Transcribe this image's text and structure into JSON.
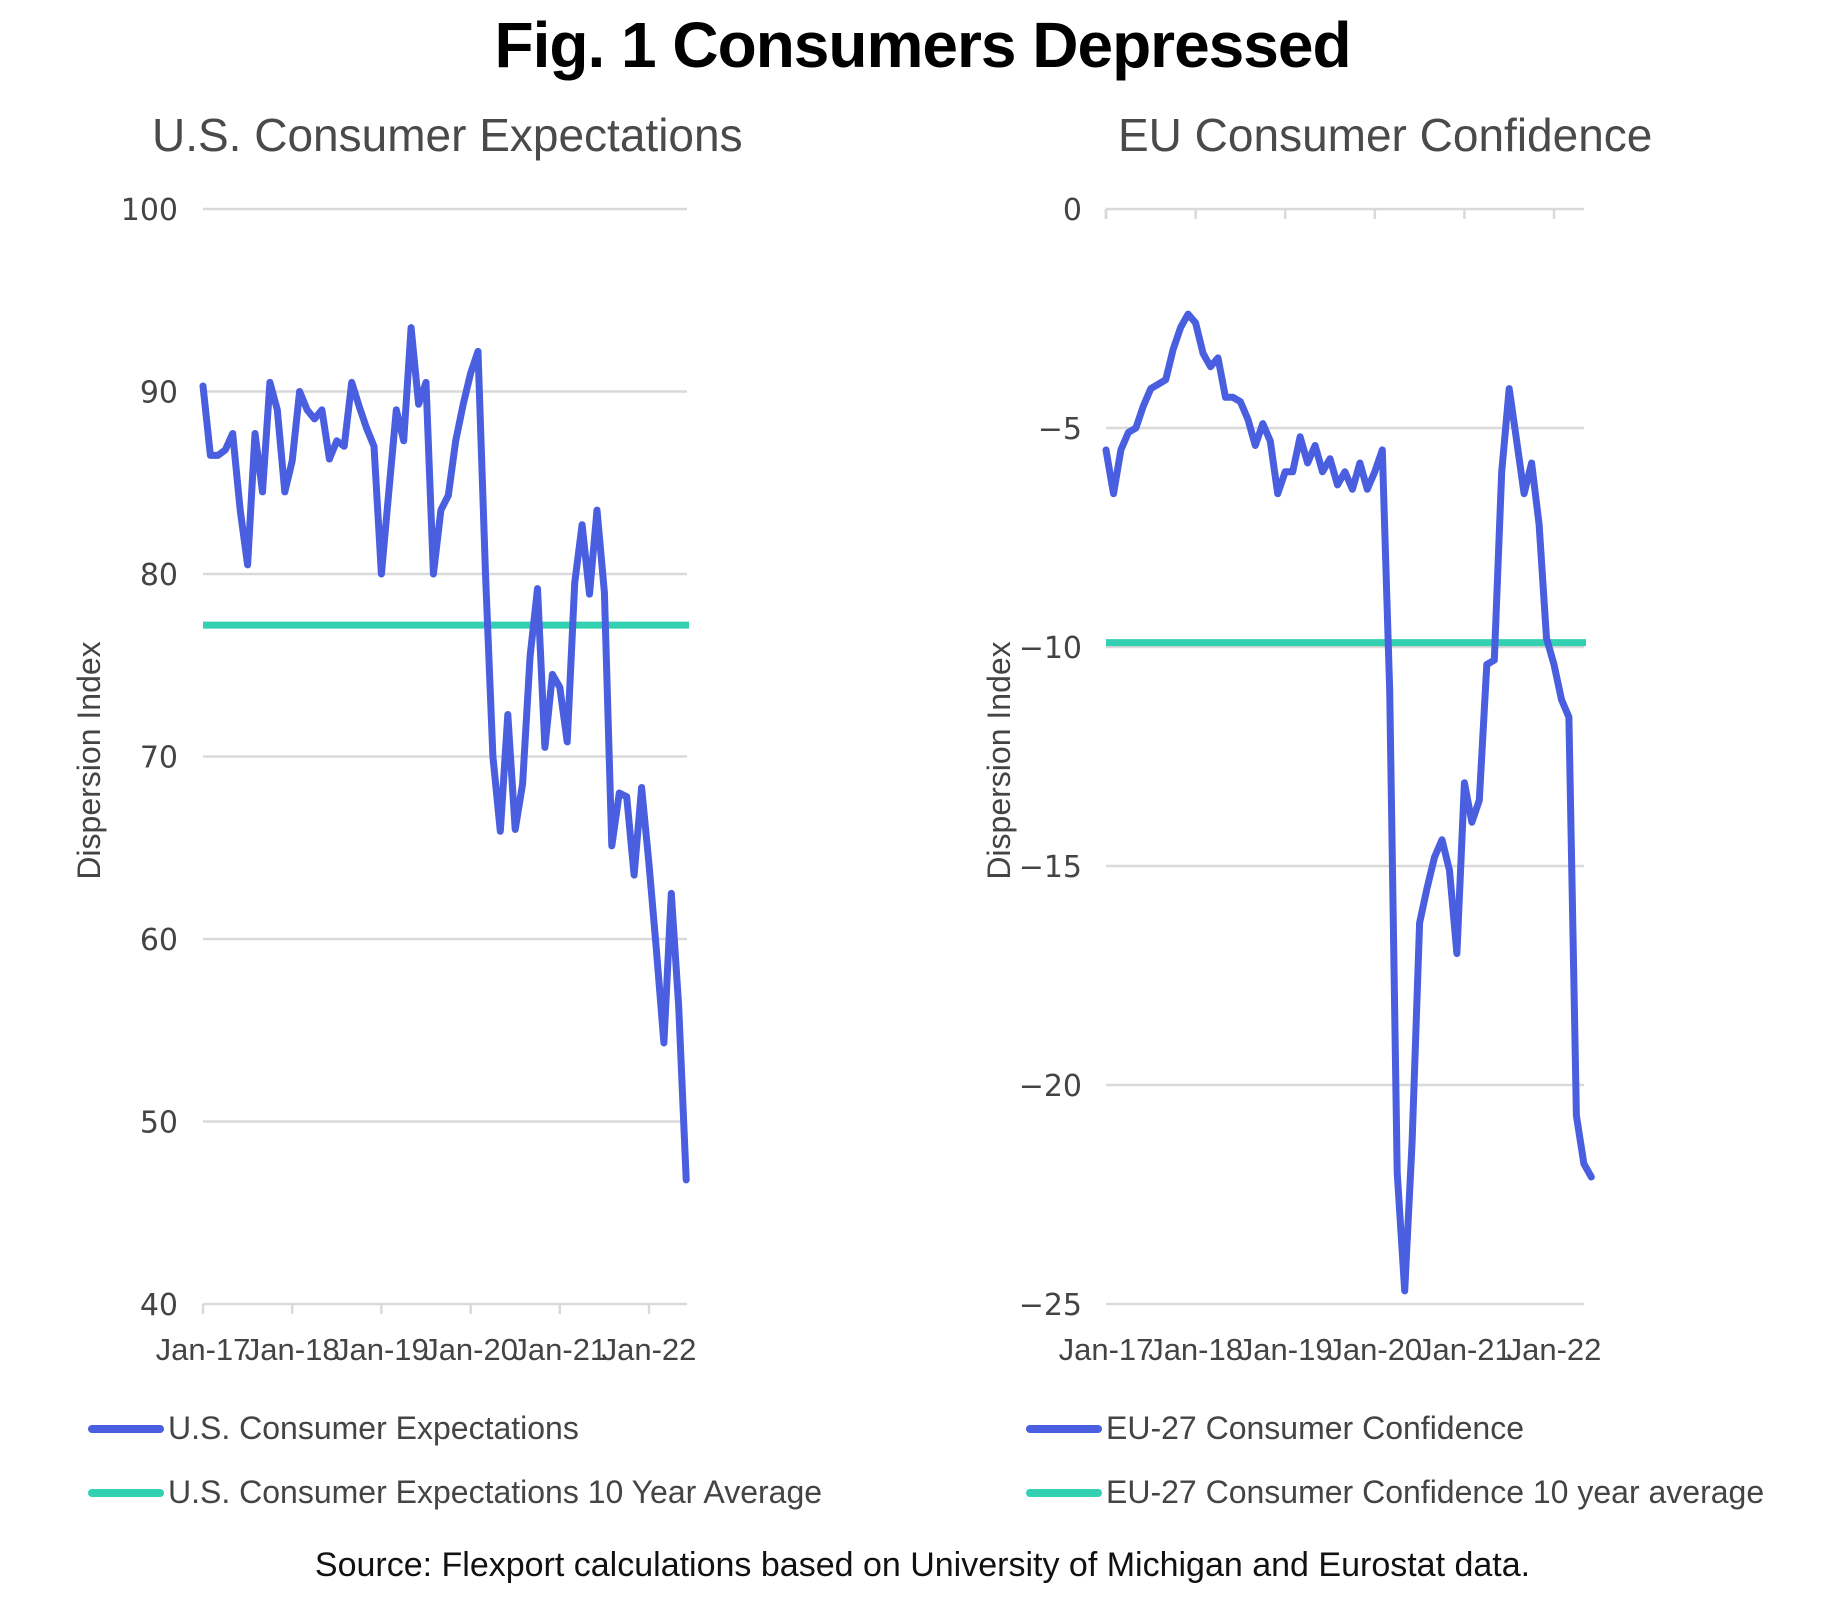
{
  "title": "Fig. 1 Consumers Depressed",
  "source": "Source: Flexport calculations based on University of Michigan and Eurostat data.",
  "colors": {
    "series": "#4a5ee0",
    "average": "#33d1b2",
    "grid": "#d9d9d9",
    "text": "#444444"
  },
  "chart_data": [
    {
      "type": "line",
      "title": "U.S. Consumer Expectations",
      "xlabel": "",
      "ylabel": "Dispersion Index",
      "ylim": [
        40,
        100
      ],
      "yticks": [
        40,
        50,
        60,
        70,
        80,
        90,
        100
      ],
      "xticks": [
        "Jan-17",
        "Jan-18",
        "Jan-19",
        "Jan-20",
        "Jan-21",
        "Jan-22"
      ],
      "x_start": "Jan-17",
      "x_frequency": "monthly",
      "grid": true,
      "legend_position": "bottom",
      "series": [
        {
          "name": "U.S. Consumer Expectations",
          "values": [
            90.3,
            86.5,
            86.5,
            86.8,
            87.7,
            83.5,
            80.5,
            87.7,
            84.5,
            90.5,
            89,
            84.5,
            86.2,
            90,
            89,
            88.5,
            89,
            86.3,
            87.3,
            87,
            90.5,
            89.2,
            88,
            87,
            80,
            84.5,
            89,
            87.3,
            93.5,
            89.3,
            90.5,
            80,
            83.5,
            84.3,
            87.3,
            89.3,
            91,
            92.2,
            80,
            70,
            65.9,
            72.3,
            66,
            68.5,
            75.5,
            79.2,
            70.5,
            74.5,
            73.8,
            70.8,
            79.5,
            82.7,
            78.9,
            83.5,
            79,
            65.1,
            68,
            67.8,
            63.5,
            68.3,
            64.1,
            59.4,
            54.3,
            62.5,
            56.3,
            46.8
          ]
        },
        {
          "name": "U.S. Consumer Expectations 10 Year Average",
          "constant": 77.2
        }
      ]
    },
    {
      "type": "line",
      "title": "EU Consumer Confidence",
      "xlabel": "",
      "ylabel": "Dispersion Index",
      "ylim": [
        -25,
        0
      ],
      "yticks": [
        0,
        -5,
        -10,
        -15,
        -20,
        -25
      ],
      "xticks": [
        "Jan-17",
        "Jan-18",
        "Jan-19",
        "Jan-20",
        "Jan-21",
        "Jan-22"
      ],
      "x_start": "Jan-17",
      "x_frequency": "monthly",
      "grid": true,
      "legend_position": "bottom",
      "series": [
        {
          "name": "EU-27 Consumer Confidence",
          "values": [
            -5.5,
            -6.5,
            -5.5,
            -5.1,
            -5.0,
            -4.5,
            -4.1,
            -4.0,
            -3.9,
            -3.2,
            -2.7,
            -2.4,
            -2.6,
            -3.3,
            -3.6,
            -3.4,
            -4.3,
            -4.3,
            -4.4,
            -4.8,
            -5.4,
            -4.9,
            -5.3,
            -6.5,
            -6.0,
            -6.0,
            -5.2,
            -5.8,
            -5.4,
            -6.0,
            -5.7,
            -6.3,
            -6.0,
            -6.4,
            -5.8,
            -6.4,
            -6.0,
            -5.5,
            -11.0,
            -22.0,
            -24.7,
            -21.3,
            -16.3,
            -15.5,
            -14.8,
            -14.4,
            -15.1,
            -17.0,
            -13.1,
            -14.0,
            -13.5,
            -10.4,
            -10.3,
            -6.0,
            -4.1,
            -5.3,
            -6.5,
            -5.8,
            -7.2,
            -9.8,
            -10.4,
            -11.2,
            -11.6,
            -20.7,
            -21.8,
            -22.1
          ]
        },
        {
          "name": "EU-27 Consumer Confidence 10 year average",
          "constant": -9.9
        }
      ]
    }
  ]
}
